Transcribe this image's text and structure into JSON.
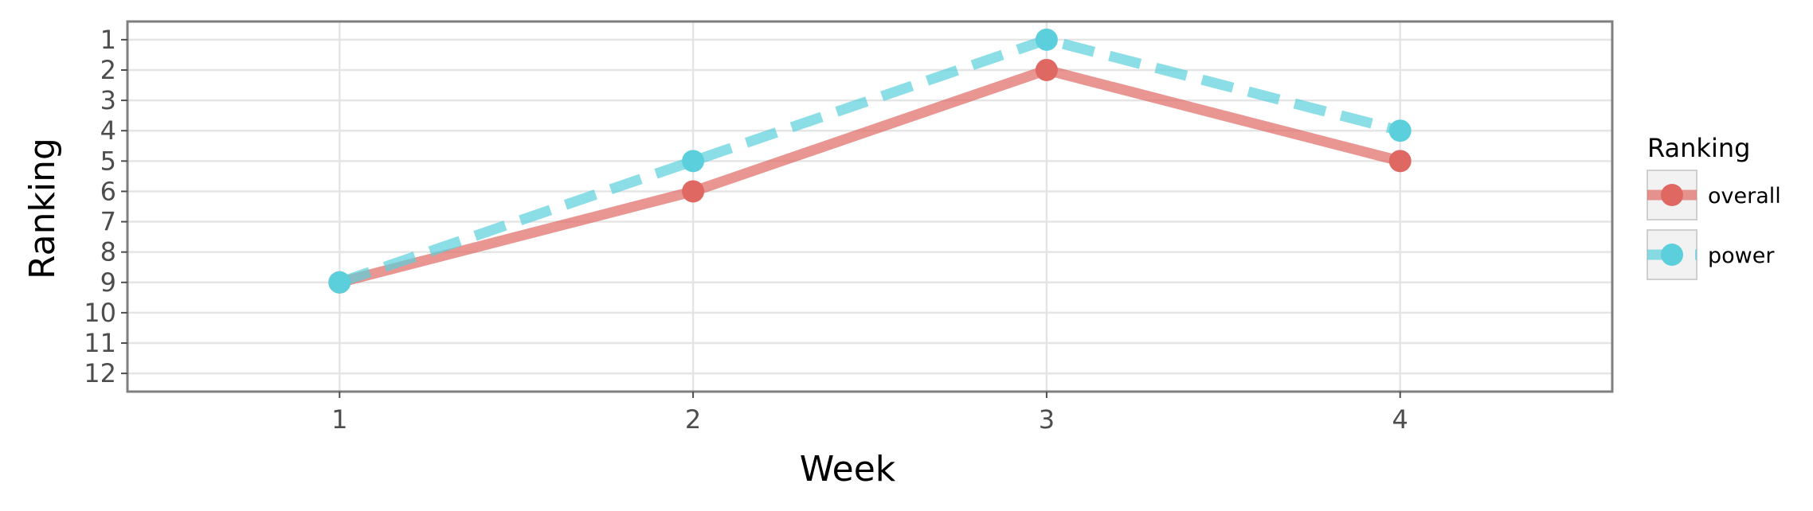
{
  "chart_data": {
    "type": "line",
    "xlabel": "Week",
    "ylabel": "Ranking",
    "x": [
      1,
      2,
      3,
      4
    ],
    "xlim": [
      0.4,
      4.6
    ],
    "xticks": [
      "1",
      "2",
      "3",
      "4"
    ],
    "ylim": [
      12.6,
      0.4
    ],
    "y_reversed": true,
    "yticks": [
      "1",
      "2",
      "3",
      "4",
      "5",
      "6",
      "7",
      "8",
      "9",
      "10",
      "11",
      "12"
    ],
    "grid": true,
    "legend": {
      "title": "Ranking",
      "placement": "right"
    },
    "series": [
      {
        "name": "overall",
        "values": [
          9,
          6,
          2,
          5
        ],
        "color": "#E06862",
        "line_style": "solid"
      },
      {
        "name": "power",
        "values": [
          9,
          5,
          1,
          4
        ],
        "color": "#5BD0DC",
        "line_style": "dashed"
      }
    ]
  }
}
